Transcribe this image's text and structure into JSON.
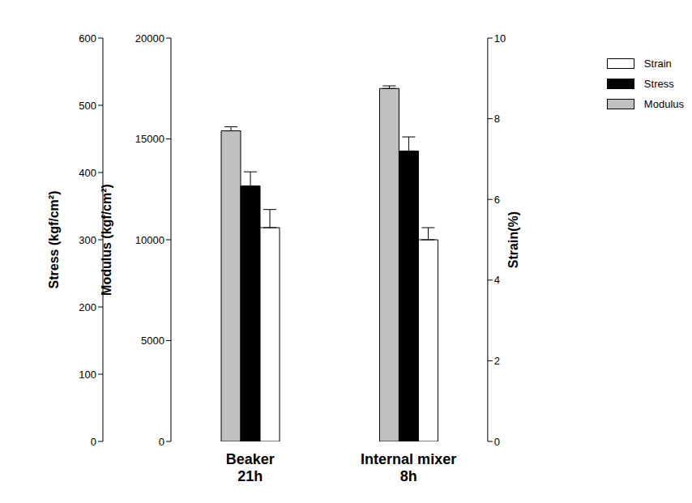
{
  "chart_data": {
    "type": "bar",
    "categories": [
      "Beaker\n21h",
      "Internal mixer\n8h"
    ],
    "series": [
      {
        "name": "Modulus",
        "color": "#c0c0c0",
        "values": [
          15400,
          17500
        ],
        "errors": [
          200,
          130
        ],
        "axis": "y"
      },
      {
        "name": "Stress",
        "color": "#000000",
        "values": [
          380,
          432
        ],
        "errors": [
          21,
          21
        ],
        "axis": "y2"
      },
      {
        "name": "Strain",
        "color": "#ffffff",
        "values": [
          5.3,
          5.0
        ],
        "errors": [
          0.45,
          0.3
        ],
        "axis": "y3"
      }
    ],
    "ylabel": "Modulus (kgf/cm²)",
    "ylim": [
      0,
      20000
    ],
    "yticks": [
      0,
      5000,
      10000,
      15000,
      20000
    ],
    "y2label": "Stress (kgf/cm²)",
    "y2lim": [
      0,
      600
    ],
    "y2ticks": [
      0,
      100,
      200,
      300,
      400,
      500,
      600
    ],
    "y3label": "Strain(%)",
    "y3lim": [
      0,
      10
    ],
    "y3ticks": [
      0,
      2,
      4,
      6,
      8,
      10
    ],
    "grid": false,
    "legend": "upper right"
  }
}
